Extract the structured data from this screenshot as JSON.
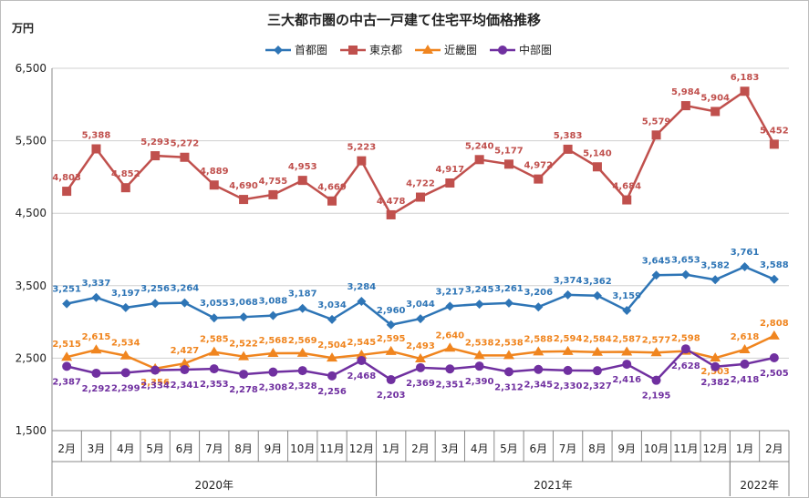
{
  "chart_data": {
    "type": "line",
    "title": "三大都市圏の中古一戸建て住宅平均価格推移",
    "ylabel": "万円",
    "ylim": [
      1500,
      6500
    ],
    "yticks": [
      "1,500",
      "2,500",
      "3,500",
      "4,500",
      "5,500",
      "6,500"
    ],
    "ytick_values": [
      1500,
      2500,
      3500,
      4500,
      5500,
      6500
    ],
    "grid": true,
    "legend_position": "top",
    "categories": [
      "2月",
      "3月",
      "4月",
      "5月",
      "6月",
      "7月",
      "8月",
      "9月",
      "10月",
      "11月",
      "12月",
      "1月",
      "2月",
      "3月",
      "4月",
      "5月",
      "6月",
      "7月",
      "8月",
      "9月",
      "10月",
      "11月",
      "12月",
      "1月",
      "2月"
    ],
    "year_groups": [
      {
        "label": "2020年",
        "start": 0,
        "end": 10
      },
      {
        "label": "2021年",
        "start": 11,
        "end": 22
      },
      {
        "label": "2022年",
        "start": 23,
        "end": 24
      }
    ],
    "series": [
      {
        "name": "首都圏",
        "color": "#2e75b6",
        "marker": "diamond",
        "values": [
          3251,
          3337,
          3197,
          3256,
          3264,
          3055,
          3068,
          3088,
          3187,
          3034,
          3284,
          2960,
          3044,
          3217,
          3245,
          3261,
          3206,
          3374,
          3362,
          3159,
          3645,
          3653,
          3582,
          3761,
          3588
        ],
        "labels": [
          "3,251",
          "3,337",
          "3,197",
          "3,256",
          "3,264",
          "3,055",
          "3,068",
          "3,088",
          "3,187",
          "3,034",
          "3,284",
          "2,960",
          "3,044",
          "3,217",
          "3,245",
          "3,261",
          "3,206",
          "3,374",
          "3,362",
          "3,159",
          "3,645",
          "3,653",
          "3,582",
          "3,761",
          "3,588"
        ]
      },
      {
        "name": "東京都",
        "color": "#c0504d",
        "marker": "square",
        "values": [
          4803,
          5388,
          4852,
          5293,
          5272,
          4889,
          4690,
          4755,
          4953,
          4669,
          5223,
          4478,
          4722,
          4917,
          5240,
          5177,
          4972,
          5383,
          5140,
          4684,
          5579,
          5984,
          5904,
          6183,
          5452
        ],
        "labels": [
          "4,803",
          "5,388",
          "4,852",
          "5,293",
          "5,272",
          "4,889",
          "4,690",
          "4,755",
          "4,953",
          "4,669",
          "5,223",
          "4,478",
          "4,722",
          "4,917",
          "5,240",
          "5,177",
          "4,972",
          "5,383",
          "5,140",
          "4,684",
          "5,579",
          "5,984",
          "5,904",
          "6,183",
          "5,452"
        ]
      },
      {
        "name": "近畿圏",
        "color": "#f0851f",
        "marker": "triangle",
        "values": [
          2515,
          2615,
          2534,
          2356,
          2427,
          2585,
          2522,
          2568,
          2569,
          2504,
          2545,
          2595,
          2493,
          2640,
          2538,
          2538,
          2588,
          2594,
          2584,
          2587,
          2577,
          2598,
          2503,
          2618,
          2808
        ],
        "labels": [
          "2,515",
          "2,615",
          "2,534",
          "2,356",
          "2,427",
          "2,585",
          "2,522",
          "2,568",
          "2,569",
          "2,504",
          "2,545",
          "2,595",
          "2,493",
          "2,640",
          "2,538",
          "2,538",
          "2,588",
          "2,594",
          "2,584",
          "2,587",
          "2,577",
          "2,598",
          "2,503",
          "2,618",
          "2,808"
        ]
      },
      {
        "name": "中部圏",
        "color": "#7030a0",
        "marker": "circle",
        "values": [
          2387,
          2292,
          2299,
          2334,
          2341,
          2353,
          2278,
          2308,
          2328,
          2256,
          2468,
          2203,
          2369,
          2351,
          2390,
          2312,
          2345,
          2330,
          2327,
          2416,
          2195,
          2628,
          2382,
          2418,
          2505
        ],
        "labels": [
          "2,387",
          "2,292",
          "2,299",
          "2,334",
          "2,341",
          "2,353",
          "2,278",
          "2,308",
          "2,328",
          "2,256",
          "2,468",
          "2,203",
          "2,369",
          "2,351",
          "2,390",
          "2,312",
          "2,345",
          "2,330",
          "2,327",
          "2,416",
          "2,195",
          "2,628",
          "2,382",
          "2,418",
          "2,505"
        ]
      }
    ]
  }
}
